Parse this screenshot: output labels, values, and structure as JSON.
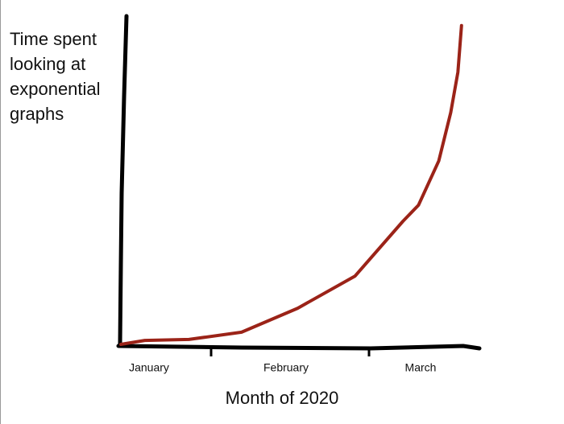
{
  "chart_data": {
    "type": "line",
    "ylabel": [
      "Time spent",
      "looking at",
      "exponential",
      "graphs"
    ],
    "xlabel": "Month of 2020",
    "categories": [
      "January",
      "February",
      "March"
    ],
    "x": [
      0,
      0.2,
      0.57,
      1.01,
      1.48,
      1.96,
      2.36,
      2.49,
      2.66,
      2.76,
      2.82,
      2.85
    ],
    "series": [
      {
        "color": "#9b2318",
        "values": [
          0,
          1.2,
          1.5,
          3.7,
          11.0,
          20.8,
          37.5,
          42.4,
          55.9,
          70.6,
          82.9,
          97.1
        ]
      }
    ],
    "xlim": [
      0,
      3
    ],
    "ylim": [
      0,
      100
    ]
  }
}
